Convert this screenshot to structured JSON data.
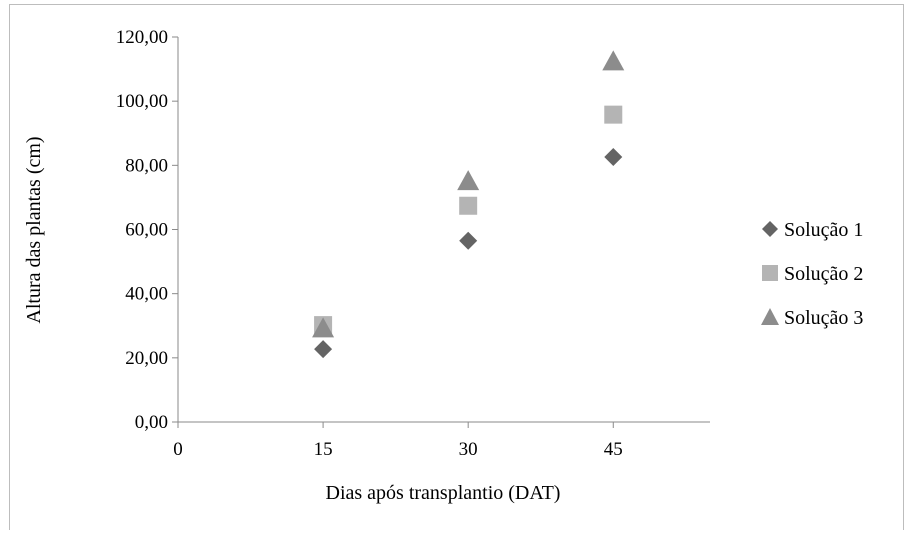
{
  "chart_data": {
    "type": "scatter",
    "xlabel": "Dias após transplantio (DAT)",
    "ylabel": "Altura das plantas (cm)",
    "xlim": [
      0,
      55
    ],
    "ylim": [
      0,
      120
    ],
    "x_ticks": [
      0,
      15,
      30,
      45
    ],
    "y_ticks": [
      "0,00",
      "20,00",
      "40,00",
      "60,00",
      "80,00",
      "100,00",
      "120,00"
    ],
    "grid": false,
    "legend_position": "right",
    "series": [
      {
        "name": "Solução 1",
        "marker": "diamond",
        "color": "#646464",
        "x": [
          15,
          30,
          45
        ],
        "y": [
          22.7,
          56.5,
          82.6
        ]
      },
      {
        "name": "Solução 2",
        "marker": "square",
        "color": "#b4b4b4",
        "x": [
          15,
          30,
          45
        ],
        "y": [
          30.2,
          67.4,
          95.8
        ]
      },
      {
        "name": "Solução 3",
        "marker": "triangle",
        "color": "#8c8c8c",
        "x": [
          15,
          30,
          45
        ],
        "y": [
          29.5,
          75.4,
          112.7
        ]
      }
    ]
  }
}
